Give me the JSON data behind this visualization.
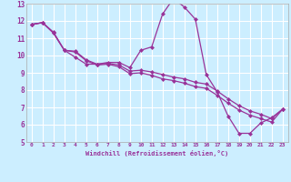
{
  "background_color": "#cceeff",
  "grid_color": "#ffffff",
  "line_color": "#993399",
  "marker_color": "#993399",
  "xlabel": "Windchill (Refroidissement éolien,°C)",
  "xlim": [
    -0.5,
    23.5
  ],
  "ylim": [
    5,
    13
  ],
  "xticks": [
    0,
    1,
    2,
    3,
    4,
    5,
    6,
    7,
    8,
    9,
    10,
    11,
    12,
    13,
    14,
    15,
    16,
    17,
    18,
    19,
    20,
    21,
    22,
    23
  ],
  "yticks": [
    5,
    6,
    7,
    8,
    9,
    10,
    11,
    12,
    13
  ],
  "series1": [
    11.8,
    11.9,
    11.3,
    10.3,
    9.9,
    9.5,
    9.5,
    9.6,
    9.6,
    9.3,
    10.3,
    10.5,
    12.4,
    13.3,
    12.8,
    12.1,
    8.9,
    7.9,
    6.5,
    5.5,
    5.5,
    6.1,
    6.4,
    6.9
  ],
  "series2": [
    11.8,
    11.9,
    11.35,
    10.3,
    10.25,
    9.75,
    9.5,
    9.55,
    9.45,
    9.1,
    9.15,
    9.05,
    8.9,
    8.75,
    8.65,
    8.45,
    8.35,
    7.95,
    7.5,
    7.1,
    6.8,
    6.6,
    6.35,
    6.9
  ],
  "series3": [
    11.8,
    11.9,
    11.3,
    10.3,
    10.2,
    9.7,
    9.45,
    9.5,
    9.35,
    8.95,
    9.0,
    8.85,
    8.65,
    8.55,
    8.4,
    8.2,
    8.1,
    7.7,
    7.25,
    6.85,
    6.55,
    6.35,
    6.15,
    6.9
  ]
}
